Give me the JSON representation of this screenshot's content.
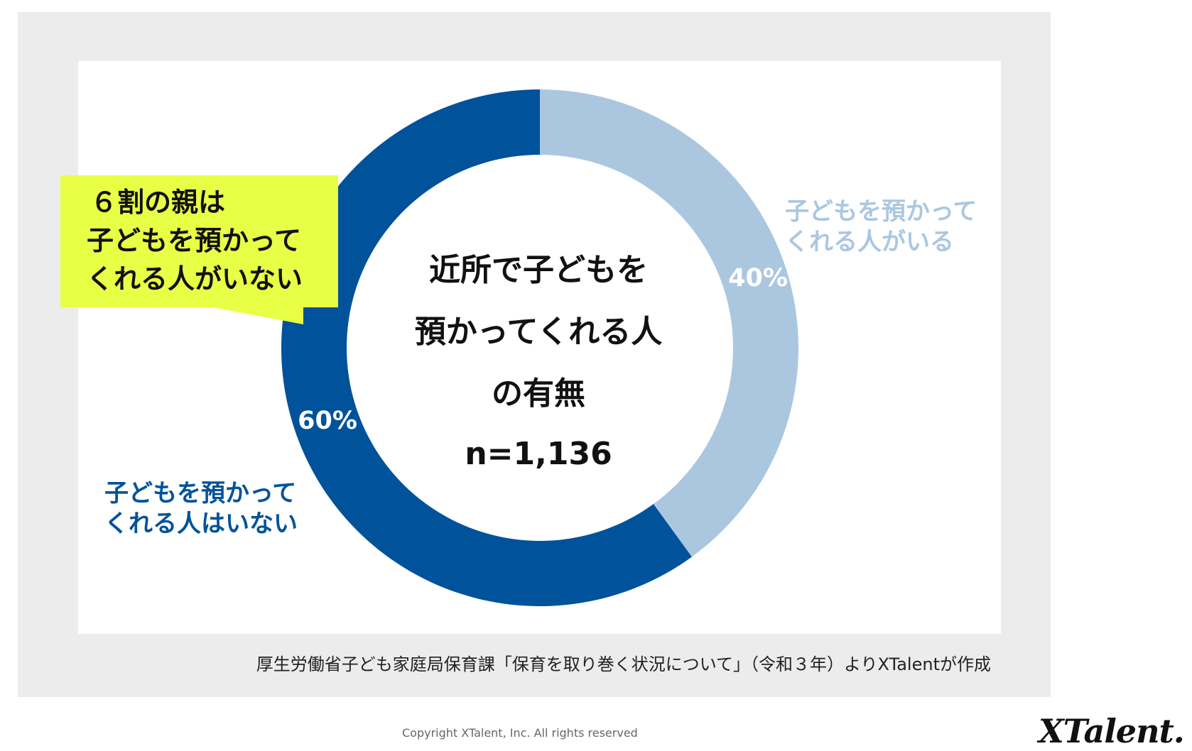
{
  "chart_data": {
    "type": "donut",
    "center_title_lines": [
      "近所で子どもを",
      "預かってくれる人",
      "の有無"
    ],
    "sample_size": "n=1,136",
    "slices": [
      {
        "label_lines": [
          "子どもを預かって",
          "くれる人がいる"
        ],
        "value": 40,
        "value_label": "40%",
        "color": "#abc7e0"
      },
      {
        "label_lines": [
          "子どもを預かって",
          "くれる人はいない"
        ],
        "value": 60,
        "value_label": "60%",
        "color": "#00529b"
      }
    ],
    "callout": {
      "lines": [
        "６割の親は",
        "子どもを預かって",
        "くれる人がいない"
      ],
      "background": "#e9ff45"
    }
  },
  "source": "厚生労働省子ども家庭局保育課「保育を取り巻く状況について」（令和３年）よりXTalentが作成",
  "copyright": "Copyright XTalent, Inc. All rights reserved",
  "logo": "XTalent.",
  "colors": {
    "frame": "#ececec",
    "panel": "#ffffff",
    "dark_blue": "#00529b",
    "light_blue": "#abc7e0",
    "callout": "#e9ff45"
  }
}
